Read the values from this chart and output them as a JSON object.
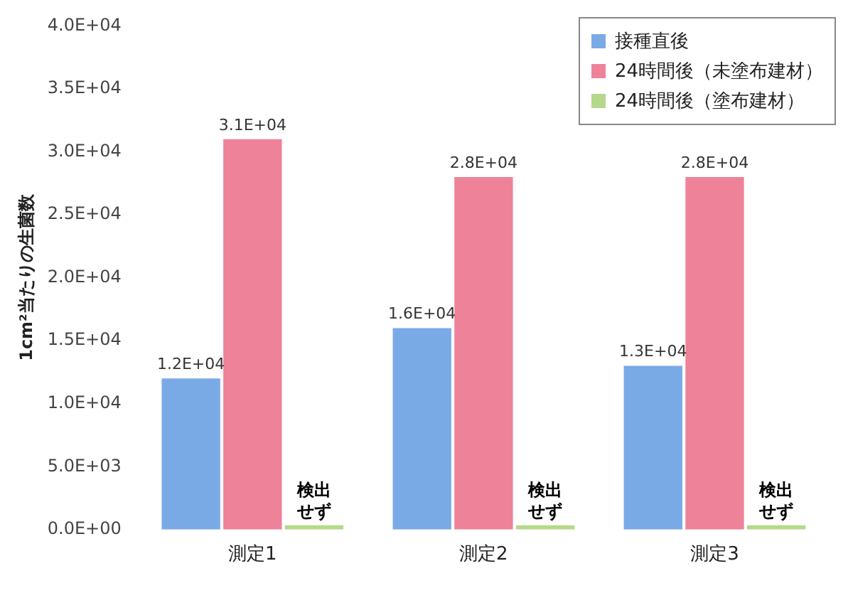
{
  "chart_data": {
    "type": "bar",
    "ylabel": "1cm²当たりの生菌数",
    "categories": [
      "測定1",
      "測定2",
      "測定3"
    ],
    "series": [
      {
        "name": "接種直後",
        "color": "#7aaae6",
        "values": [
          12000,
          16000,
          13000
        ],
        "value_labels": [
          "1.2E+04",
          "1.6E+04",
          "1.3E+04"
        ]
      },
      {
        "name": "24時間後（未塗布建材）",
        "color": "#ee8299",
        "values": [
          31000,
          28000,
          28000
        ],
        "value_labels": [
          "3.1E+04",
          "2.8E+04",
          "2.8E+04"
        ]
      },
      {
        "name": "24時間後（塗布建材）",
        "color": "#b5d88a",
        "values": [
          0,
          0,
          0
        ],
        "value_labels": [
          "検出せず",
          "検出せず",
          "検出せず"
        ]
      }
    ],
    "ylim": [
      0,
      40000
    ],
    "yticks": [
      {
        "value": 0,
        "label": "0.0E+00"
      },
      {
        "value": 5000,
        "label": "5.0E+03"
      },
      {
        "value": 10000,
        "label": "1.0E+04"
      },
      {
        "value": 15000,
        "label": "1.5E+04"
      },
      {
        "value": 20000,
        "label": "2.0E+04"
      },
      {
        "value": 25000,
        "label": "2.5E+04"
      },
      {
        "value": 30000,
        "label": "3.0E+04"
      },
      {
        "value": 35000,
        "label": "3.5E+04"
      },
      {
        "value": 40000,
        "label": "4.0E+04"
      }
    ],
    "grid": false,
    "legend": "top right"
  }
}
